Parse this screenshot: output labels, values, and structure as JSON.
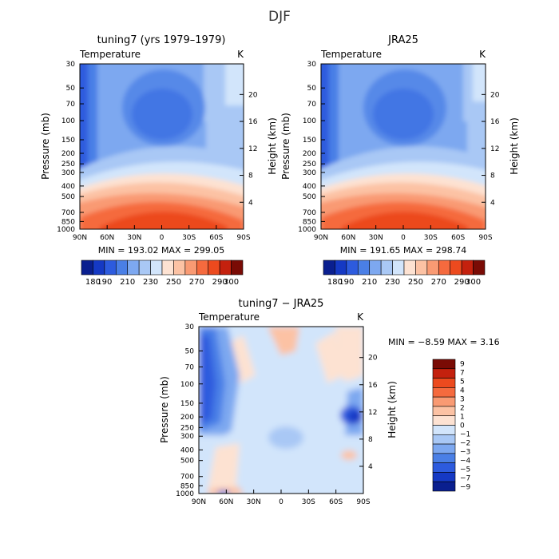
{
  "figure": {
    "title": "DJF"
  },
  "chart_data": [
    {
      "type": "heatmap",
      "title": "tuning7 (yrs 1979–1979)",
      "subtitle_left": "Temperature",
      "subtitle_right": "K",
      "xlabel": "",
      "ylabel": "Pressure (mb)",
      "ylabel_right": "Height (km)",
      "x_ticks": [
        "90N",
        "60N",
        "30N",
        "0",
        "30S",
        "60S",
        "90S"
      ],
      "y_ticks": [
        "30",
        "50",
        "70",
        "100",
        "150",
        "200",
        "250",
        "300",
        "400",
        "500",
        "700",
        "850",
        "1000"
      ],
      "y_ticks_right": [
        "20",
        "16",
        "12",
        "8",
        "4"
      ],
      "stats": "MIN = 193.02   MAX = 299.05",
      "levels": [
        180,
        190,
        200,
        210,
        220,
        230,
        240,
        250,
        260,
        270,
        280,
        290,
        300
      ],
      "colorbar_labels": [
        "180",
        "190",
        "210",
        "230",
        "250",
        "270",
        "290",
        "300"
      ],
      "min": 193.02,
      "max": 299.05
    },
    {
      "type": "heatmap",
      "title": "JRA25",
      "subtitle_left": "Temperature",
      "subtitle_right": "K",
      "xlabel": "",
      "ylabel": "Pressure (mb)",
      "ylabel_right": "Height (km)",
      "x_ticks": [
        "90N",
        "60N",
        "30N",
        "0",
        "30S",
        "60S",
        "90S"
      ],
      "y_ticks": [
        "30",
        "50",
        "70",
        "100",
        "150",
        "200",
        "250",
        "300",
        "400",
        "500",
        "700",
        "850",
        "1000"
      ],
      "y_ticks_right": [
        "20",
        "16",
        "12",
        "8",
        "4"
      ],
      "stats": "MIN = 191.65   MAX = 298.74",
      "levels": [
        180,
        190,
        200,
        210,
        220,
        230,
        240,
        250,
        260,
        270,
        280,
        290,
        300
      ],
      "colorbar_labels": [
        "180",
        "190",
        "210",
        "230",
        "250",
        "270",
        "290",
        "300"
      ],
      "min": 191.65,
      "max": 298.74
    },
    {
      "type": "heatmap",
      "title": "tuning7 − JRA25",
      "subtitle_left": "Temperature",
      "subtitle_right": "K",
      "xlabel": "",
      "ylabel": "Pressure (mb)",
      "ylabel_right": "Height (km)",
      "x_ticks": [
        "90N",
        "60N",
        "30N",
        "0",
        "30S",
        "60S",
        "90S"
      ],
      "y_ticks": [
        "30",
        "50",
        "70",
        "100",
        "150",
        "200",
        "250",
        "300",
        "400",
        "500",
        "700",
        "850",
        "1000"
      ],
      "y_ticks_right": [
        "20",
        "16",
        "12",
        "8",
        "4"
      ],
      "stats": "MIN =  −8.59   MAX =    3.16",
      "levels": [
        -9,
        -7,
        -5,
        -4,
        -3,
        -2,
        -1,
        0,
        1,
        2,
        3,
        4,
        5,
        7,
        9
      ],
      "colorbar_labels": [
        "9",
        "7",
        "5",
        "4",
        "3",
        "2",
        "1",
        "0",
        "−1",
        "−2",
        "−3",
        "−4",
        "−5",
        "−7",
        "−9"
      ],
      "min": -8.59,
      "max": 3.16
    }
  ]
}
